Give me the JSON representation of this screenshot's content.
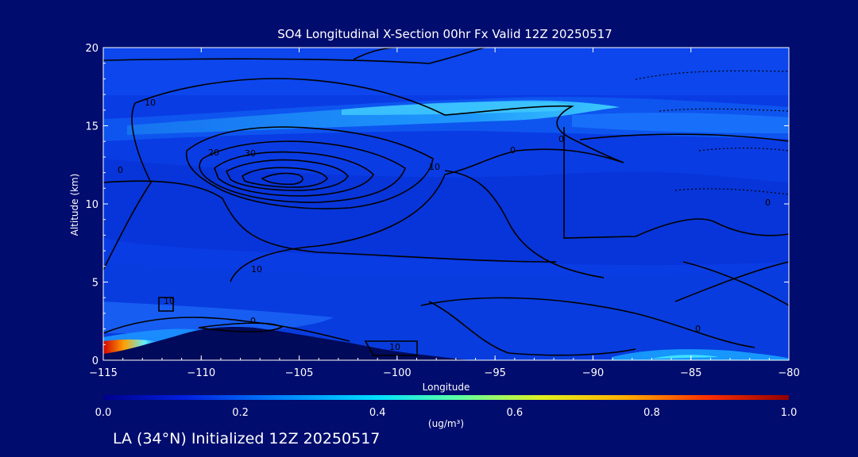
{
  "chart_data": {
    "type": "heatmap",
    "title": "SO4 Longitudinal X-Section 00hr  Fx Valid 12Z 20250517",
    "xlabel": "Longitude",
    "ylabel": "Altitude (km)",
    "xlim": [
      -115,
      -80
    ],
    "ylim": [
      0,
      20
    ],
    "x_ticks": [
      -115,
      -110,
      -105,
      -100,
      -95,
      -90,
      -85,
      -80
    ],
    "y_ticks": [
      0,
      5,
      10,
      15,
      20
    ],
    "colorbar": {
      "label": "(ug/m³)",
      "min": 0.0,
      "max": 1.0,
      "ticks": [
        "0.0",
        "0.2",
        "0.4",
        "0.6",
        "0.8",
        "1.0"
      ]
    },
    "contour_labels": [
      "10",
      "20",
      "30",
      "10",
      "10",
      "0",
      "0",
      "0",
      "0",
      "10",
      "10",
      "0",
      "0"
    ],
    "features": [
      {
        "kind": "stratospheric sulfate layer",
        "altitude_km": 15.5,
        "lon_range": [
          -115,
          -88
        ],
        "value": 0.32
      },
      {
        "kind": "surface maximum",
        "lon": -115,
        "altitude_km": 0.5,
        "value": 1.0
      },
      {
        "kind": "upper-level contour maximum",
        "lon": -107,
        "altitude_km": 11.5,
        "value": 30
      }
    ]
  },
  "footer": {
    "text": "LA (34°N) Initialized 12Z 20250517"
  }
}
